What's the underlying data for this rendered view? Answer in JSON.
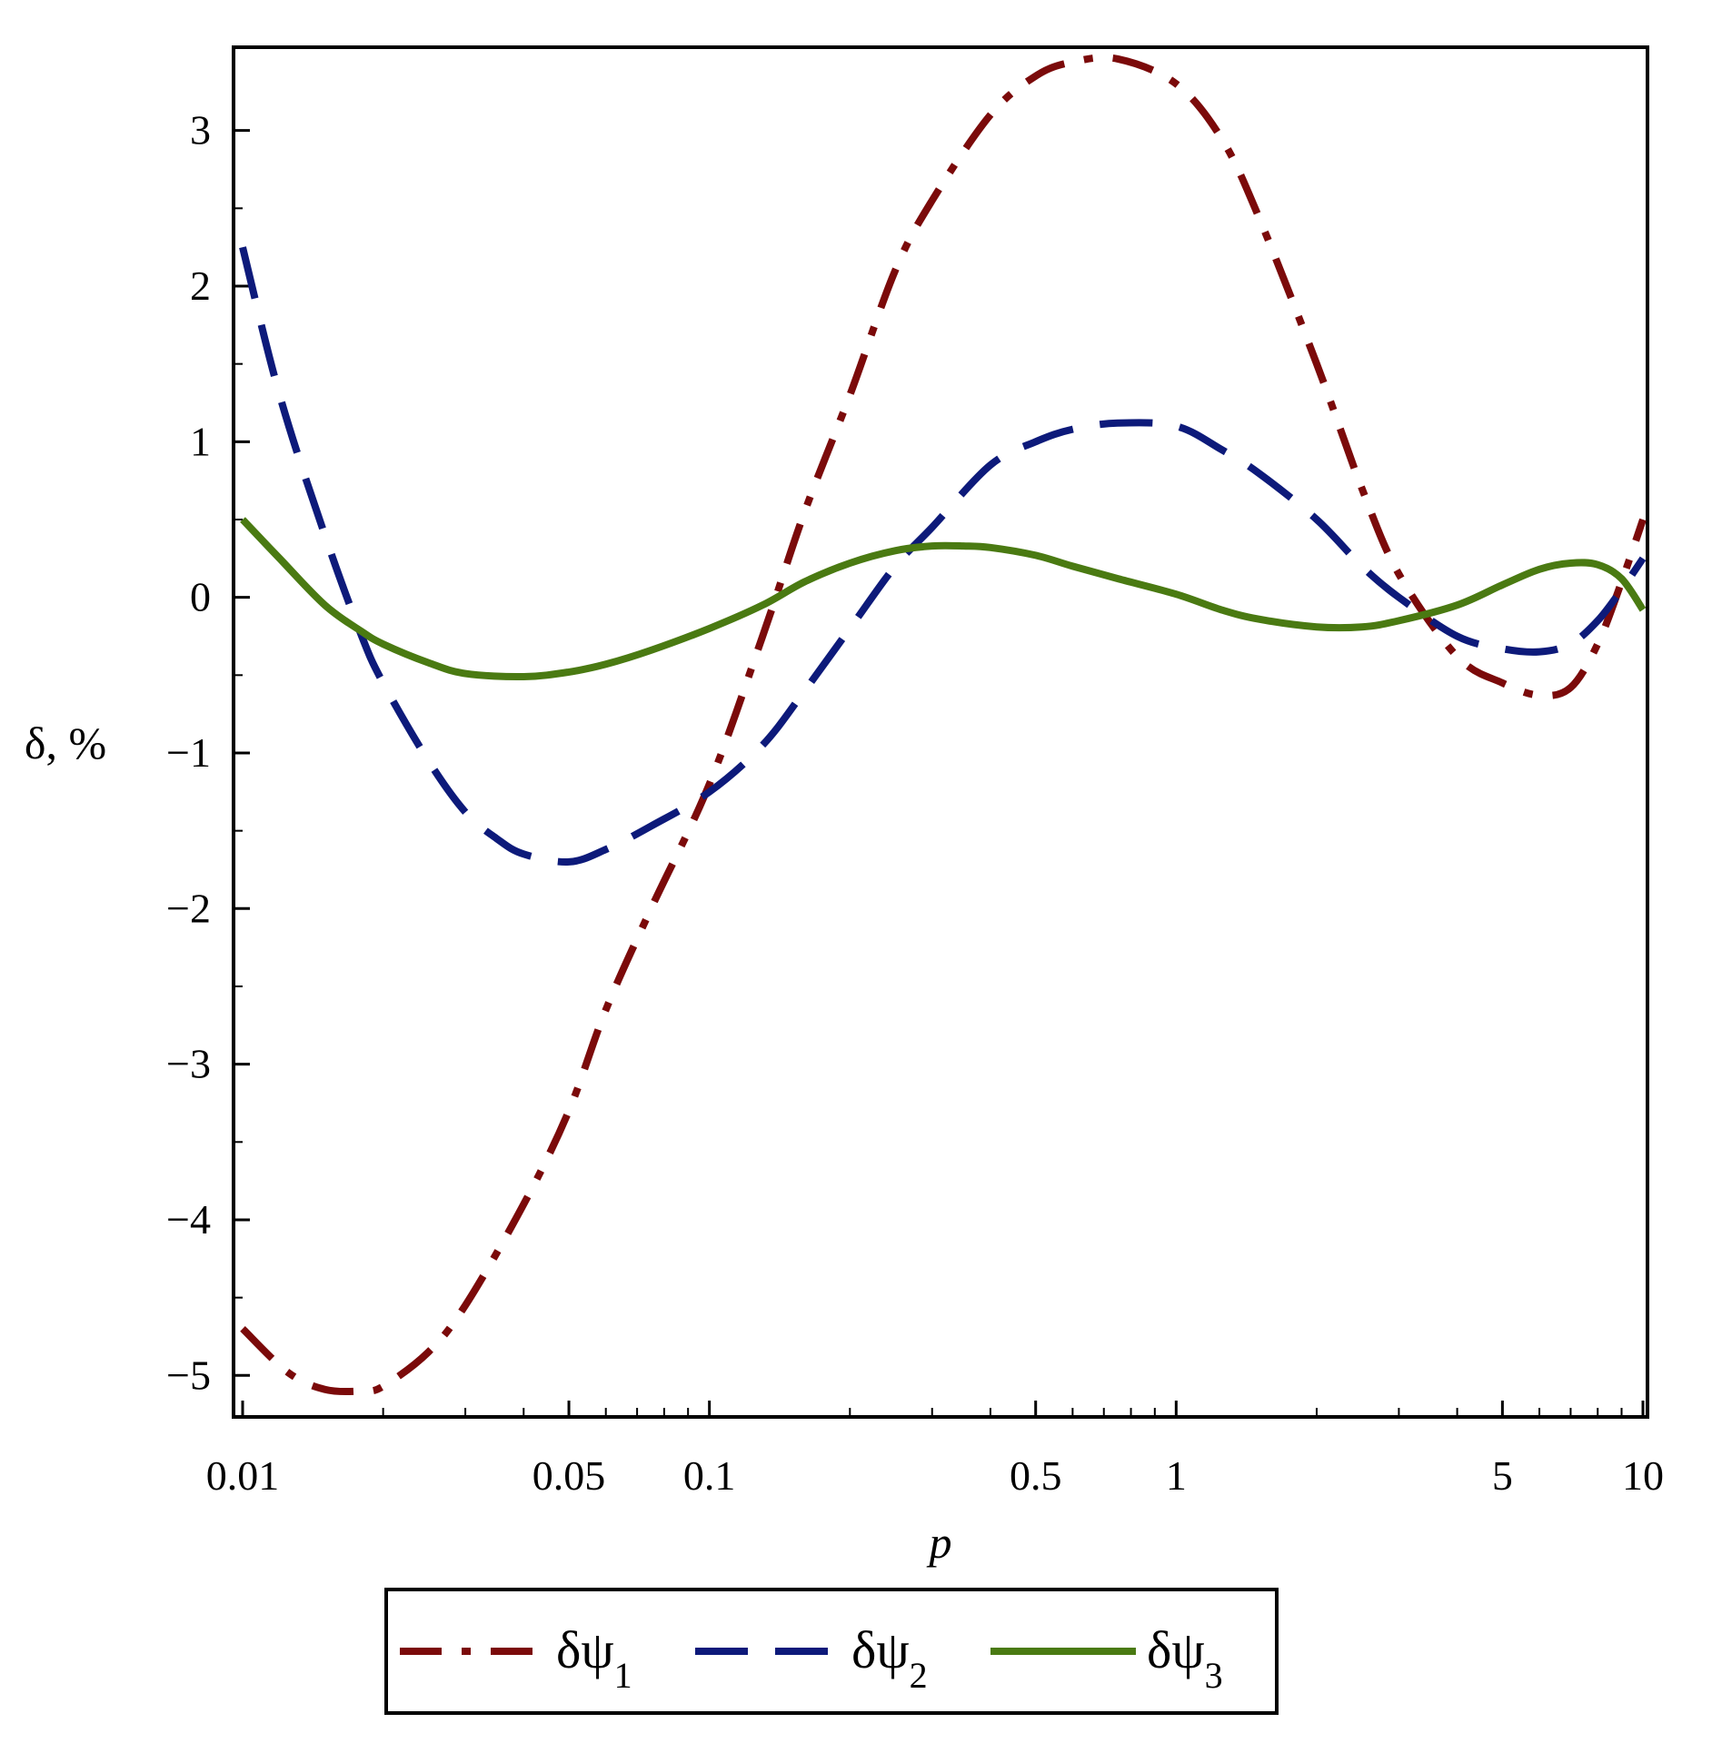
{
  "chart_data": {
    "type": "line",
    "xlabel": "p",
    "ylabel": "δ, %",
    "xscale": "log",
    "xlim": [
      0.01,
      10
    ],
    "ylim": [
      -5.15,
      3.5
    ],
    "xticks": [
      {
        "value": 0.01,
        "label": "0.01"
      },
      {
        "value": 0.05,
        "label": "0.05"
      },
      {
        "value": 0.1,
        "label": "0.1"
      },
      {
        "value": 0.5,
        "label": "0.5"
      },
      {
        "value": 1,
        "label": "1"
      },
      {
        "value": 5,
        "label": "5"
      },
      {
        "value": 10,
        "label": "10"
      }
    ],
    "yticks": [
      {
        "value": 3,
        "label": "3"
      },
      {
        "value": 2,
        "label": "2"
      },
      {
        "value": 1,
        "label": "1"
      },
      {
        "value": 0,
        "label": "0"
      },
      {
        "value": -1,
        "label": "-1"
      },
      {
        "value": -2,
        "label": "-2"
      },
      {
        "value": -3,
        "label": "-3"
      },
      {
        "value": -4,
        "label": "-4"
      },
      {
        "value": -5,
        "label": "-5"
      }
    ],
    "grid": false,
    "legend_position": "bottom",
    "series": [
      {
        "name": "δψ",
        "subscript": "1",
        "color": "#7b0a0a",
        "dash": "dash-dot",
        "x": [
          0.01,
          0.0125,
          0.015,
          0.018,
          0.02,
          0.025,
          0.03,
          0.04,
          0.05,
          0.06,
          0.075,
          0.1,
          0.13,
          0.16,
          0.2,
          0.25,
          0.3,
          0.4,
          0.5,
          0.6,
          0.75,
          1.0,
          1.25,
          1.5,
          2.0,
          2.5,
          3.0,
          4.0,
          5.0,
          6.0,
          7.0,
          8.0,
          9.0,
          10.0
        ],
        "y": [
          -4.7,
          -4.98,
          -5.09,
          -5.1,
          -5.07,
          -4.85,
          -4.55,
          -3.9,
          -3.3,
          -2.65,
          -2.0,
          -1.2,
          -0.25,
          0.55,
          1.3,
          2.1,
          2.55,
          3.1,
          3.35,
          3.44,
          3.46,
          3.3,
          2.95,
          2.45,
          1.5,
          0.7,
          0.15,
          -0.38,
          -0.55,
          -0.63,
          -0.58,
          -0.3,
          0.1,
          0.5
        ]
      },
      {
        "name": "δψ",
        "subscript": "2",
        "color": "#0d1a7a",
        "dash": "dash",
        "x": [
          0.01,
          0.012,
          0.015,
          0.018,
          0.02,
          0.025,
          0.03,
          0.035,
          0.04,
          0.05,
          0.06,
          0.075,
          0.1,
          0.13,
          0.16,
          0.2,
          0.25,
          0.3,
          0.4,
          0.5,
          0.6,
          0.75,
          1.0,
          1.25,
          1.5,
          2.0,
          2.5,
          3.0,
          4.0,
          5.0,
          6.0,
          7.0,
          8.0,
          9.0,
          10.0
        ],
        "y": [
          2.25,
          1.3,
          0.4,
          -0.25,
          -0.55,
          -1.05,
          -1.38,
          -1.55,
          -1.65,
          -1.7,
          -1.62,
          -1.47,
          -1.25,
          -0.95,
          -0.6,
          -0.2,
          0.2,
          0.45,
          0.85,
          1.0,
          1.08,
          1.12,
          1.1,
          0.95,
          0.8,
          0.5,
          0.2,
          0.0,
          -0.25,
          -0.33,
          -0.35,
          -0.3,
          -0.15,
          0.05,
          0.25
        ]
      },
      {
        "name": "δψ",
        "subscript": "3",
        "color": "#4a7a12",
        "dash": "solid",
        "x": [
          0.01,
          0.012,
          0.015,
          0.018,
          0.02,
          0.025,
          0.03,
          0.04,
          0.05,
          0.06,
          0.075,
          0.1,
          0.13,
          0.16,
          0.2,
          0.25,
          0.3,
          0.35,
          0.4,
          0.5,
          0.6,
          0.75,
          1.0,
          1.25,
          1.5,
          2.0,
          2.5,
          3.0,
          4.0,
          5.0,
          6.0,
          7.0,
          8.0,
          9.0,
          10.0
        ],
        "y": [
          0.5,
          0.25,
          -0.05,
          -0.22,
          -0.3,
          -0.42,
          -0.49,
          -0.51,
          -0.48,
          -0.43,
          -0.34,
          -0.2,
          -0.05,
          0.1,
          0.22,
          0.3,
          0.33,
          0.33,
          0.32,
          0.27,
          0.2,
          0.12,
          0.02,
          -0.08,
          -0.14,
          -0.19,
          -0.19,
          -0.15,
          -0.05,
          0.08,
          0.18,
          0.22,
          0.21,
          0.12,
          -0.08
        ]
      }
    ]
  }
}
